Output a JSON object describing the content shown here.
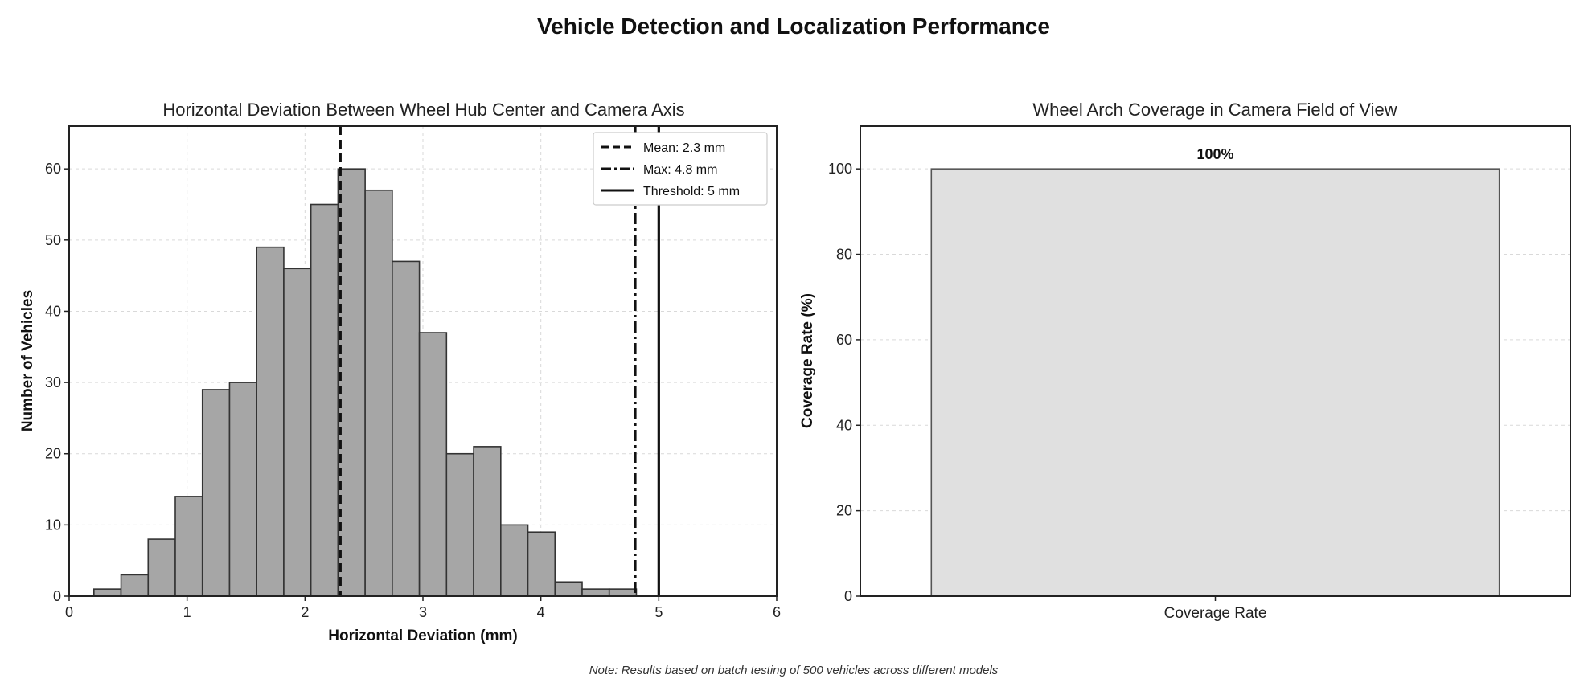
{
  "figure": {
    "title": "Vehicle Detection and Localization Performance",
    "note": "Note: Results based on batch testing of 500 vehicles across different models"
  },
  "chart_data": [
    {
      "type": "bar",
      "subtype": "histogram",
      "title": "Horizontal Deviation Between Wheel Hub Center and Camera Axis",
      "xlabel": "Horizontal Deviation (mm)",
      "ylabel": "Number of Vehicles",
      "xlim": [
        0,
        6
      ],
      "ylim": [
        0,
        66
      ],
      "xticks": [
        0,
        1,
        2,
        3,
        4,
        5,
        6
      ],
      "yticks": [
        0,
        10,
        20,
        30,
        40,
        50,
        60
      ],
      "grid": true,
      "bar_color": "#a6a6a6",
      "bin_edges": [
        0.21,
        0.44,
        0.67,
        0.9,
        1.13,
        1.36,
        1.59,
        1.82,
        2.05,
        2.28,
        2.51,
        2.74,
        2.97,
        3.2,
        3.43,
        3.66,
        3.89,
        4.12,
        4.35,
        4.58,
        4.81
      ],
      "counts": [
        1,
        3,
        8,
        14,
        29,
        30,
        49,
        46,
        55,
        60,
        57,
        47,
        37,
        20,
        21,
        10,
        9,
        2,
        1,
        1
      ],
      "reference_lines": [
        {
          "label": "Mean: 2.3 mm",
          "x": 2.3,
          "style": "dashed"
        },
        {
          "label": "Max: 4.8 mm",
          "x": 4.8,
          "style": "dashdot"
        },
        {
          "label": "Threshold: 5 mm",
          "x": 5.0,
          "style": "solid"
        }
      ],
      "legend_position": "top-right"
    },
    {
      "type": "bar",
      "title": "Wheel Arch Coverage in Camera Field of View",
      "xlabel": "",
      "ylabel": "Coverage Rate (%)",
      "categories": [
        "Coverage Rate"
      ],
      "values": [
        100
      ],
      "data_labels": [
        "100%"
      ],
      "ylim": [
        0,
        110
      ],
      "yticks": [
        0,
        20,
        40,
        60,
        80,
        100
      ],
      "grid": true,
      "bar_color": "#e0e0e0"
    }
  ]
}
